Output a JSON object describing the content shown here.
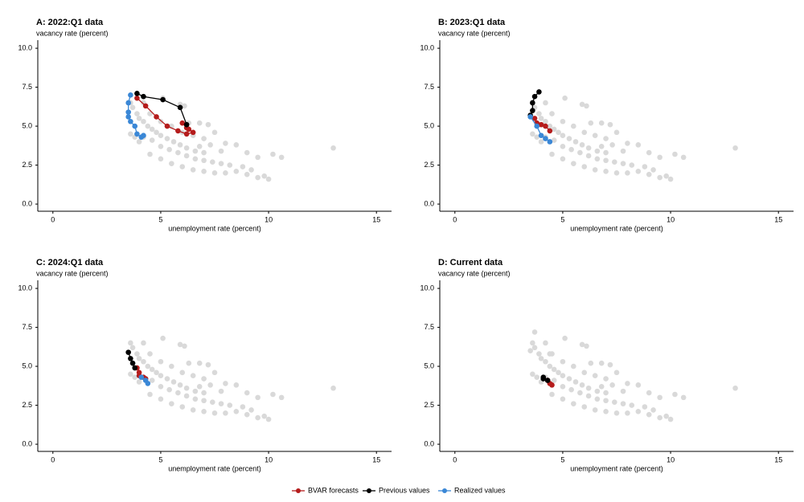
{
  "chart_data": [
    {
      "type": "scatter",
      "title": "A: 2022:Q1 data",
      "xlabel": "unemployment rate (percent)",
      "ylabel": "vacancy rate (percent)",
      "xlim": [
        -0.7,
        15.7
      ],
      "ylim": [
        -0.46,
        10.52
      ],
      "xticks": [
        0,
        5,
        10,
        15
      ],
      "yticks": [
        {
          "value": 0,
          "label": "0.0"
        },
        2.5,
        {
          "value": 5,
          "label": "5.0"
        },
        7.5,
        {
          "value": 10,
          "label": "10.0"
        }
      ],
      "series": [
        {
          "color": "#d9d9d9",
          "mode": "markers",
          "x": [
            3.6,
            3.7,
            3.9,
            4.0,
            4.2,
            4.4,
            4.6,
            4.8,
            5.0,
            5.3,
            5.6,
            5.9,
            6.2,
            6.6,
            7.0,
            5.1,
            5.9,
            6.1,
            6.3,
            6.8,
            7.2,
            7.5,
            8.0,
            8.5,
            9.0,
            9.5,
            10.2,
            10.6,
            13.0,
            4.5,
            5.0,
            5.5,
            6.0,
            6.5,
            7.0,
            7.5,
            8.0,
            8.5,
            9.0,
            9.5,
            9.8,
            10.0,
            4.2,
            4.6,
            5.0,
            5.4,
            5.8,
            6.2,
            6.6,
            7.0,
            7.4,
            7.8,
            8.2,
            8.8,
            9.2,
            6.0,
            6.5,
            7.0,
            5.5,
            5.0,
            4.5,
            4.2,
            3.8,
            3.6,
            4.0,
            7.3,
            7.8,
            6.8
          ],
          "y": [
            6.5,
            6.2,
            5.8,
            5.5,
            5.3,
            5.0,
            4.8,
            4.6,
            4.4,
            4.2,
            4.0,
            3.8,
            3.6,
            3.4,
            3.3,
            6.8,
            6.4,
            6.3,
            5.2,
            5.2,
            5.1,
            4.6,
            3.9,
            3.8,
            3.3,
            3.0,
            3.2,
            3.0,
            3.6,
            3.2,
            2.9,
            2.6,
            2.4,
            2.2,
            2.1,
            2.0,
            2.0,
            2.1,
            1.9,
            1.7,
            1.8,
            1.6,
            4.3,
            4.1,
            3.7,
            3.5,
            3.3,
            3.1,
            2.9,
            2.8,
            2.7,
            2.6,
            2.5,
            2.4,
            2.2,
            4.6,
            4.4,
            4.2,
            5.0,
            5.3,
            5.8,
            6.5,
            4.3,
            4.5,
            4.0,
            3.8,
            3.4,
            3.7
          ]
        },
        {
          "name": "BVAR forecasts",
          "color": "#b51c1c",
          "mode": "lines+markers",
          "x": [
            6.0,
            6.2,
            6.3,
            6.5,
            6.2,
            5.8,
            5.3,
            4.8,
            4.3,
            3.9
          ],
          "y": [
            5.2,
            4.9,
            4.8,
            4.6,
            4.5,
            4.7,
            5.0,
            5.6,
            6.3,
            6.8
          ]
        },
        {
          "name": "Previous values",
          "color": "#000000",
          "mode": "lines+markers",
          "x": [
            3.9,
            4.2,
            5.1,
            5.9,
            6.2
          ],
          "y": [
            7.1,
            6.9,
            6.7,
            6.2,
            5.1
          ]
        },
        {
          "name": "Realized values",
          "color": "#3a87d6",
          "mode": "lines+markers",
          "x": [
            3.6,
            3.5,
            3.5,
            3.5,
            3.6,
            3.8,
            3.9,
            4.1,
            4.2
          ],
          "y": [
            7.0,
            6.5,
            5.9,
            5.6,
            5.3,
            5.0,
            4.5,
            4.3,
            4.4
          ]
        }
      ]
    },
    {
      "type": "scatter",
      "title": "B: 2023:Q1 data",
      "xlabel": "unemployment rate (percent)",
      "ylabel": "vacancy rate (percent)",
      "xlim": [
        -0.7,
        15.7
      ],
      "ylim": [
        -0.46,
        10.52
      ],
      "xticks": [
        0,
        5,
        10,
        15
      ],
      "yticks": [
        {
          "value": 0,
          "label": "0.0"
        },
        2.5,
        {
          "value": 5,
          "label": "5.0"
        },
        7.5,
        {
          "value": 10,
          "label": "10.0"
        }
      ],
      "series": [
        {
          "color": "#d9d9d9",
          "mode": "markers",
          "x": [
            3.6,
            3.7,
            3.9,
            4.0,
            4.2,
            4.4,
            4.6,
            4.8,
            5.0,
            5.3,
            5.6,
            5.9,
            6.2,
            6.6,
            7.0,
            5.1,
            5.9,
            6.1,
            6.3,
            6.8,
            7.2,
            7.5,
            8.0,
            8.5,
            9.0,
            9.5,
            10.2,
            10.6,
            13.0,
            4.5,
            5.0,
            5.5,
            6.0,
            6.5,
            7.0,
            7.5,
            8.0,
            8.5,
            9.0,
            9.5,
            9.8,
            10.0,
            4.2,
            4.6,
            5.0,
            5.4,
            5.8,
            6.2,
            6.6,
            7.0,
            7.4,
            7.8,
            8.2,
            8.8,
            9.2,
            6.0,
            6.5,
            7.0,
            5.5,
            5.0,
            4.5,
            4.2,
            3.8,
            3.6,
            4.0,
            7.3,
            7.8,
            6.8
          ],
          "y": [
            6.5,
            6.2,
            5.8,
            5.5,
            5.3,
            5.0,
            4.8,
            4.6,
            4.4,
            4.2,
            4.0,
            3.8,
            3.6,
            3.4,
            3.3,
            6.8,
            6.4,
            6.3,
            5.2,
            5.2,
            5.1,
            4.6,
            3.9,
            3.8,
            3.3,
            3.0,
            3.2,
            3.0,
            3.6,
            3.2,
            2.9,
            2.6,
            2.4,
            2.2,
            2.1,
            2.0,
            2.0,
            2.1,
            1.9,
            1.7,
            1.8,
            1.6,
            4.3,
            4.1,
            3.7,
            3.5,
            3.3,
            3.1,
            2.9,
            2.8,
            2.7,
            2.6,
            2.5,
            2.4,
            2.2,
            4.6,
            4.4,
            4.2,
            5.0,
            5.3,
            5.8,
            6.5,
            4.3,
            4.5,
            4.0,
            3.8,
            3.4,
            3.7
          ]
        },
        {
          "color": "#b51c1c",
          "mode": "lines+markers",
          "x": [
            3.7,
            3.8,
            4.0,
            4.2,
            4.4
          ],
          "y": [
            5.5,
            5.2,
            5.1,
            5.0,
            4.7
          ]
        },
        {
          "color": "#000000",
          "mode": "lines+markers",
          "x": [
            3.9,
            3.7,
            3.6,
            3.6,
            3.5
          ],
          "y": [
            7.2,
            6.9,
            6.5,
            6.0,
            5.7
          ]
        },
        {
          "color": "#3a87d6",
          "mode": "lines+markers",
          "x": [
            3.5,
            3.8,
            4.0,
            4.2,
            4.4
          ],
          "y": [
            5.6,
            5.0,
            4.4,
            4.2,
            4.0
          ]
        }
      ]
    },
    {
      "type": "scatter",
      "title": "C: 2024:Q1 data",
      "xlabel": "unemployment rate (percent)",
      "ylabel": "vacancy rate (percent)",
      "xlim": [
        -0.7,
        15.7
      ],
      "ylim": [
        -0.46,
        10.52
      ],
      "xticks": [
        0,
        5,
        10,
        15
      ],
      "yticks": [
        {
          "value": 0,
          "label": "0.0"
        },
        2.5,
        {
          "value": 5,
          "label": "5.0"
        },
        7.5,
        {
          "value": 10,
          "label": "10.0"
        }
      ],
      "series": [
        {
          "color": "#d9d9d9",
          "mode": "markers",
          "x": [
            3.6,
            3.7,
            3.9,
            4.0,
            4.2,
            4.4,
            4.6,
            4.8,
            5.0,
            5.3,
            5.6,
            5.9,
            6.2,
            6.6,
            7.0,
            5.1,
            5.9,
            6.1,
            6.3,
            6.8,
            7.2,
            7.5,
            8.0,
            8.5,
            9.0,
            9.5,
            10.2,
            10.6,
            13.0,
            4.5,
            5.0,
            5.5,
            6.0,
            6.5,
            7.0,
            7.5,
            8.0,
            8.5,
            9.0,
            9.5,
            9.8,
            10.0,
            4.2,
            4.6,
            5.0,
            5.4,
            5.8,
            6.2,
            6.6,
            7.0,
            7.4,
            7.8,
            8.2,
            8.8,
            9.2,
            6.0,
            6.5,
            7.0,
            5.5,
            5.0,
            4.5,
            4.2,
            3.8,
            3.6,
            4.0,
            7.3,
            7.8,
            6.8
          ],
          "y": [
            6.5,
            6.2,
            5.8,
            5.5,
            5.3,
            5.0,
            4.8,
            4.6,
            4.4,
            4.2,
            4.0,
            3.8,
            3.6,
            3.4,
            3.3,
            6.8,
            6.4,
            6.3,
            5.2,
            5.2,
            5.1,
            4.6,
            3.9,
            3.8,
            3.3,
            3.0,
            3.2,
            3.0,
            3.6,
            3.2,
            2.9,
            2.6,
            2.4,
            2.2,
            2.1,
            2.0,
            2.0,
            2.1,
            1.9,
            1.7,
            1.8,
            1.6,
            4.3,
            4.1,
            3.7,
            3.5,
            3.3,
            3.1,
            2.9,
            2.8,
            2.7,
            2.6,
            2.5,
            2.4,
            2.2,
            4.6,
            4.4,
            4.2,
            5.0,
            5.3,
            5.8,
            6.5,
            4.3,
            4.5,
            4.0,
            3.8,
            3.4,
            3.7
          ]
        },
        {
          "color": "#b51c1c",
          "mode": "lines+markers",
          "x": [
            3.9,
            4.0,
            4.0,
            4.2,
            4.3
          ],
          "y": [
            4.9,
            4.6,
            4.4,
            4.3,
            4.2
          ]
        },
        {
          "color": "#000000",
          "mode": "lines+markers",
          "x": [
            3.5,
            3.6,
            3.7,
            3.8
          ],
          "y": [
            5.9,
            5.5,
            5.2,
            4.9
          ]
        },
        {
          "color": "#3a87d6",
          "mode": "lines+markers",
          "x": [
            4.1,
            4.3,
            4.4
          ],
          "y": [
            4.3,
            4.1,
            3.9
          ]
        }
      ]
    },
    {
      "type": "scatter",
      "title": "D: Current data",
      "xlabel": "unemployment rate (percent)",
      "ylabel": "vacancy rate (percent)",
      "xlim": [
        -0.7,
        15.7
      ],
      "ylim": [
        -0.46,
        10.52
      ],
      "xticks": [
        0,
        5,
        10,
        15
      ],
      "yticks": [
        {
          "value": 0,
          "label": "0.0"
        },
        2.5,
        {
          "value": 5,
          "label": "5.0"
        },
        7.5,
        {
          "value": 10,
          "label": "10.0"
        }
      ],
      "series": [
        {
          "color": "#d9d9d9",
          "mode": "markers",
          "x": [
            3.6,
            3.7,
            3.9,
            4.0,
            4.2,
            4.4,
            4.6,
            4.8,
            5.0,
            5.3,
            5.6,
            5.9,
            6.2,
            6.6,
            7.0,
            5.1,
            5.9,
            6.1,
            6.3,
            6.8,
            7.2,
            7.5,
            8.0,
            8.5,
            9.0,
            9.5,
            10.2,
            10.6,
            13.0,
            4.5,
            5.0,
            5.5,
            6.0,
            6.5,
            7.0,
            7.5,
            8.0,
            8.5,
            9.0,
            9.5,
            9.8,
            10.0,
            4.2,
            4.6,
            5.0,
            5.4,
            5.8,
            6.2,
            6.6,
            7.0,
            7.4,
            7.8,
            8.2,
            8.8,
            9.2,
            6.0,
            6.5,
            7.0,
            5.5,
            5.0,
            4.5,
            4.2,
            3.8,
            3.6,
            4.0,
            7.3,
            7.8,
            6.8,
            3.5,
            3.7,
            4.4
          ],
          "y": [
            6.5,
            6.2,
            5.8,
            5.5,
            5.3,
            5.0,
            4.8,
            4.6,
            4.4,
            4.2,
            4.0,
            3.8,
            3.6,
            3.4,
            3.3,
            6.8,
            6.4,
            6.3,
            5.2,
            5.2,
            5.1,
            4.6,
            3.9,
            3.8,
            3.3,
            3.0,
            3.2,
            3.0,
            3.6,
            3.2,
            2.9,
            2.6,
            2.4,
            2.2,
            2.1,
            2.0,
            2.0,
            2.1,
            1.9,
            1.7,
            1.8,
            1.6,
            4.3,
            4.1,
            3.7,
            3.5,
            3.3,
            3.1,
            2.9,
            2.8,
            2.7,
            2.6,
            2.5,
            2.4,
            2.2,
            4.6,
            4.4,
            4.2,
            5.0,
            5.3,
            5.8,
            6.5,
            4.3,
            4.5,
            4.0,
            3.8,
            3.4,
            3.7,
            6.0,
            7.2,
            5.8
          ]
        },
        {
          "color": "#b51c1c",
          "mode": "lines+markers",
          "x": [
            4.3,
            4.4,
            4.5
          ],
          "y": [
            4.1,
            3.9,
            3.8
          ]
        },
        {
          "color": "#000000",
          "mode": "lines+markers",
          "x": [
            4.1,
            4.1,
            4.3
          ],
          "y": [
            4.3,
            4.2,
            4.1
          ]
        }
      ]
    }
  ]
}
